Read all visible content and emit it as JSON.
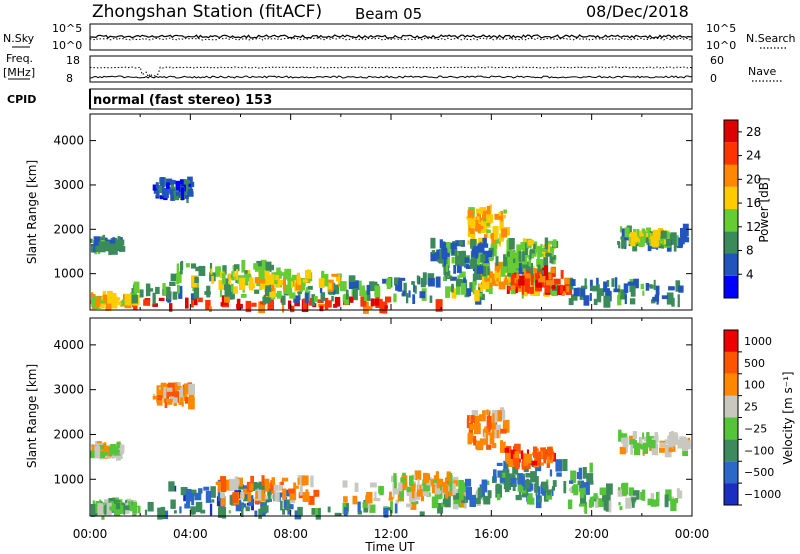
{
  "header": {
    "station": "Zhongshan Station (fitACF)",
    "beam": "Beam 05",
    "date": "08/Dec/2018"
  },
  "panels": {
    "nsky": {
      "label": "N.Sky",
      "ticks": [
        "10^5",
        "10^0"
      ],
      "right_ticks": [
        "10^5",
        "10^0"
      ],
      "right_label": "N.Search"
    },
    "freq": {
      "label_top": "Freq.",
      "label_unit": "[MHz]",
      "ticks": [
        "18",
        "8"
      ],
      "right_ticks": [
        "60",
        "0"
      ],
      "right_label": "Nave"
    },
    "cpid": {
      "label": "CPID",
      "value": "normal (fast stereo) 153"
    }
  },
  "chart_data": [
    {
      "type": "heatmap",
      "title": "",
      "ylabel": "Slant Range [km]",
      "xlabel": "",
      "x_range_hours": [
        0,
        24
      ],
      "ylim": [
        180,
        4600
      ],
      "yticks": [
        1000,
        2000,
        3000,
        4000
      ],
      "colorbar": {
        "label": "Power [dB]",
        "range": [
          0,
          30
        ],
        "ticks": [
          4,
          8,
          12,
          16,
          20,
          24,
          28
        ],
        "colors": [
          "#0000ff",
          "#2255bb",
          "#3b8a5a",
          "#66cc33",
          "#ffcc00",
          "#ff8800",
          "#ff3300",
          "#dd0000"
        ]
      },
      "regions": [
        {
          "t": [
            0.0,
            14.0
          ],
          "r": [
            200,
            420
          ],
          "v": 26
        },
        {
          "t": [
            0.0,
            1.8
          ],
          "r": [
            300,
            480
          ],
          "v": 18
        },
        {
          "t": [
            1.5,
            10.5
          ],
          "r": [
            400,
            700
          ],
          "v": 10
        },
        {
          "t": [
            3.0,
            8.0
          ],
          "r": [
            500,
            1200
          ],
          "v": 12
        },
        {
          "t": [
            5.0,
            10.0
          ],
          "r": [
            700,
            1000
          ],
          "v": 16
        },
        {
          "t": [
            10.0,
            15.5
          ],
          "r": [
            400,
            900
          ],
          "v": 8
        },
        {
          "t": [
            14.0,
            18.5
          ],
          "r": [
            500,
            1000
          ],
          "v": 14
        },
        {
          "t": [
            15.5,
            18.0
          ],
          "r": [
            700,
            1200
          ],
          "v": 18
        },
        {
          "t": [
            16.5,
            19.0
          ],
          "r": [
            600,
            1100
          ],
          "v": 24
        },
        {
          "t": [
            14.0,
            18.0
          ],
          "r": [
            1000,
            1400
          ],
          "v": 10
        },
        {
          "t": [
            15.0,
            16.5
          ],
          "r": [
            1700,
            2500
          ],
          "v": 18
        },
        {
          "t": [
            16.5,
            18.5
          ],
          "r": [
            1300,
            1700
          ],
          "v": 12
        },
        {
          "t": [
            19.0,
            23.5
          ],
          "r": [
            350,
            800
          ],
          "v": 8
        },
        {
          "t": [
            0.0,
            1.2
          ],
          "r": [
            1550,
            1750
          ],
          "v": 8
        },
        {
          "t": [
            21.0,
            23.8
          ],
          "r": [
            1600,
            2000
          ],
          "v": 8
        },
        {
          "t": [
            21.5,
            23.0
          ],
          "r": [
            1700,
            1900
          ],
          "v": 14
        },
        {
          "t": [
            13.5,
            16.0
          ],
          "r": [
            1300,
            1700
          ],
          "v": 8
        },
        {
          "t": [
            2.5,
            4.0
          ],
          "r": [
            2700,
            3100
          ],
          "v": 6
        }
      ]
    },
    {
      "type": "heatmap",
      "title": "",
      "ylabel": "Slant Range [km]",
      "xlabel": "Time UT",
      "x_range_hours": [
        0,
        24
      ],
      "x_tick_labels": [
        "00:00",
        "04:00",
        "08:00",
        "12:00",
        "16:00",
        "20:00",
        "00:00"
      ],
      "ylim": [
        180,
        4600
      ],
      "yticks": [
        1000,
        2000,
        3000,
        4000
      ],
      "colorbar": {
        "label": "Velocity [m s⁻¹]",
        "labels": [
          "1000",
          "500",
          "100",
          "25",
          "−25",
          "−100",
          "−500",
          "−1000"
        ],
        "colors": [
          "#1a2fbf",
          "#2b68c7",
          "#3d8a5c",
          "#55c43a",
          "#c8c8c0",
          "#ff8800",
          "#ff5500",
          "#ee0000"
        ]
      },
      "regions": [
        {
          "t": [
            0.0,
            14.0
          ],
          "r": [
            200,
            420
          ],
          "v": 2
        },
        {
          "t": [
            0.0,
            1.8
          ],
          "r": [
            300,
            480
          ],
          "v": 3
        },
        {
          "t": [
            3.0,
            8.0
          ],
          "r": [
            300,
            900
          ],
          "v": 1
        },
        {
          "t": [
            5.0,
            9.0
          ],
          "r": [
            500,
            1000
          ],
          "v": 5
        },
        {
          "t": [
            10.0,
            15.5
          ],
          "r": [
            400,
            900
          ],
          "v": 4
        },
        {
          "t": [
            14.0,
            18.5
          ],
          "r": [
            500,
            1000
          ],
          "v": 2
        },
        {
          "t": [
            16.0,
            20.0
          ],
          "r": [
            700,
            1400
          ],
          "v": 2
        },
        {
          "t": [
            15.0,
            16.5
          ],
          "r": [
            1700,
            2500
          ],
          "v": 5
        },
        {
          "t": [
            16.5,
            18.5
          ],
          "r": [
            1300,
            1700
          ],
          "v": 6
        },
        {
          "t": [
            19.0,
            23.5
          ],
          "r": [
            350,
            800
          ],
          "v": 3
        },
        {
          "t": [
            21.0,
            23.8
          ],
          "r": [
            1600,
            2000
          ],
          "v": 4
        },
        {
          "t": [
            0.0,
            1.2
          ],
          "r": [
            1550,
            1750
          ],
          "v": 4
        },
        {
          "t": [
            12.0,
            14.5
          ],
          "r": [
            700,
            1100
          ],
          "v": 4
        },
        {
          "t": [
            2.5,
            4.0
          ],
          "r": [
            2700,
            3100
          ],
          "v": 5
        }
      ]
    }
  ]
}
